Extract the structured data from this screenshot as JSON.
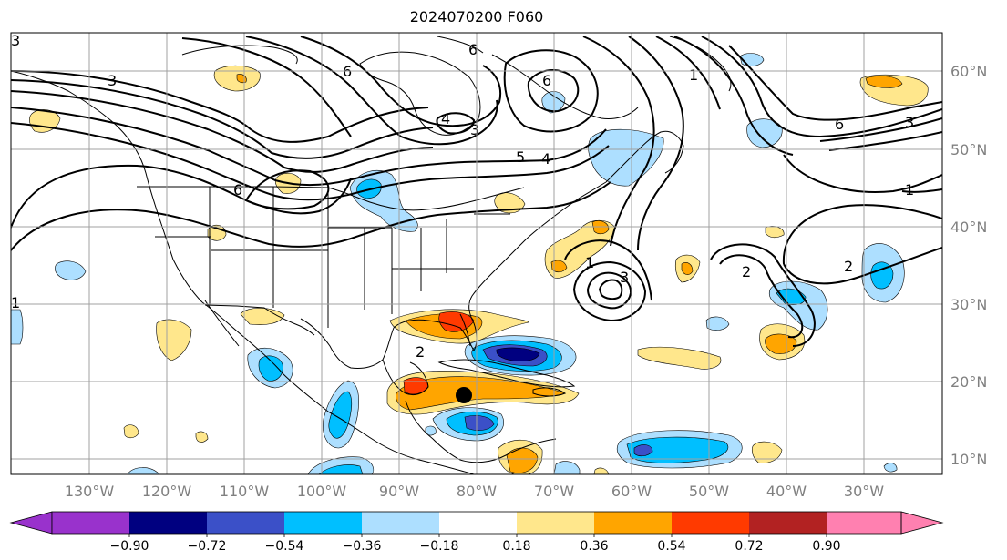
{
  "title": "2024070200 F060",
  "lon_labels": [
    "130°W",
    "120°W",
    "110°W",
    "100°W",
    "90°W",
    "80°W",
    "70°W",
    "60°W",
    "50°W",
    "40°W",
    "30°W"
  ],
  "lat_labels": [
    "60°N",
    "50°N",
    "40°N",
    "30°N",
    "20°N",
    "10°N"
  ],
  "colorbar": {
    "ticks": [
      "−0.90",
      "−0.72",
      "−0.54",
      "−0.36",
      "−0.18",
      "0.18",
      "0.36",
      "0.54",
      "0.72",
      "0.90"
    ],
    "colors": [
      "#9932CC",
      "#000080",
      "#3B50C8",
      "#00BFFF",
      "#ADDFFF",
      "#FFFFFF",
      "#FFE78C",
      "#FFA500",
      "#FF3A00",
      "#B22222",
      "#FF80B0"
    ]
  },
  "contour_labels": [
    "3",
    "3",
    "6",
    "6",
    "4",
    "3",
    "5",
    "4",
    "6",
    "1",
    "6",
    "3",
    "1",
    "6",
    "2",
    "1",
    "3",
    "2",
    "2",
    "1"
  ],
  "storm_marker": {
    "lon": -81.5,
    "lat": 18.2
  },
  "colors": {
    "line": "#000000",
    "axis_label": "#808080",
    "grid": "#A0A0A0"
  }
}
